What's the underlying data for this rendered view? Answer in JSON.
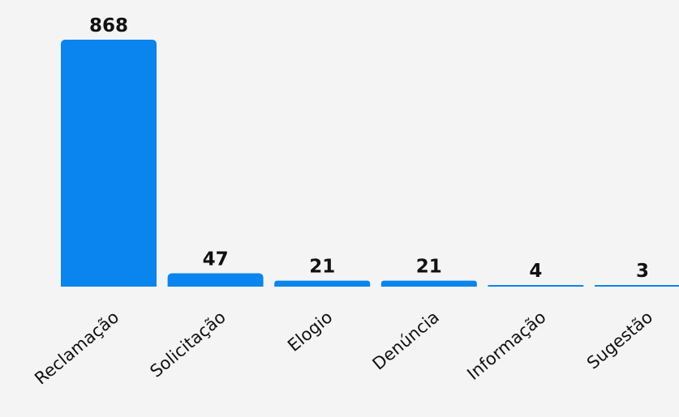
{
  "chart_data": {
    "type": "bar",
    "title": "",
    "xlabel": "",
    "ylabel": "",
    "categories": [
      "Reclamação",
      "Solicitação",
      "Elogio",
      "Denúncia",
      "Informação",
      "Sugestão"
    ],
    "values": [
      868,
      47,
      21,
      21,
      4,
      3
    ],
    "ylim": [
      0,
      868
    ],
    "grid": false,
    "legend": "none",
    "bar_color": "#0a84ef",
    "background_color": "#f4f4f4",
    "data_labels": true
  }
}
